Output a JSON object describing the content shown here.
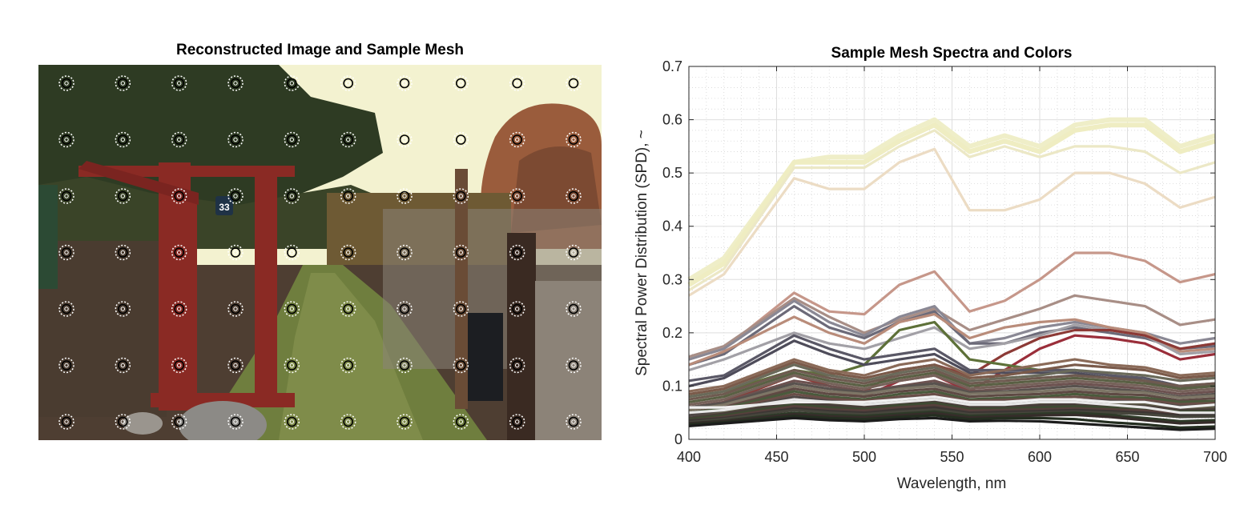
{
  "left_panel": {
    "title": "Reconstructed Image and Sample Mesh",
    "mesh": {
      "columns": 10,
      "rows": 7
    },
    "gate_number": "33",
    "colors": {
      "sky": "#f3f2d0",
      "foliage": "#2d3a22",
      "autumn_tree": "#9a5a3a",
      "gate": "#8a2a24",
      "grass": "#6f7e3e",
      "soil": "#4b3a30",
      "fence": "#6b5c50"
    }
  },
  "chart_data": {
    "type": "line",
    "title": "Sample Mesh Spectra and Colors",
    "xlabel": "Wavelength, nm",
    "ylabel": "Spectral Power Distribution (SPD), ~",
    "xlim": [
      400,
      700
    ],
    "ylim": [
      0,
      0.7
    ],
    "xticks": [
      400,
      450,
      500,
      550,
      600,
      650,
      700
    ],
    "yticks": [
      0,
      0.1,
      0.2,
      0.3,
      0.4,
      0.5,
      0.6,
      0.7
    ],
    "grid": true,
    "minor_grid": true,
    "x": [
      400,
      420,
      460,
      480,
      500,
      520,
      540,
      560,
      580,
      600,
      620,
      640,
      660,
      680,
      700
    ],
    "series": [
      {
        "color": "#efeec8",
        "values": [
          0.3,
          0.34,
          0.52,
          0.53,
          0.53,
          0.57,
          0.6,
          0.55,
          0.57,
          0.55,
          0.59,
          0.6,
          0.6,
          0.55,
          0.57
        ]
      },
      {
        "color": "#efedc2",
        "values": [
          0.29,
          0.33,
          0.52,
          0.52,
          0.52,
          0.56,
          0.59,
          0.54,
          0.56,
          0.54,
          0.58,
          0.59,
          0.59,
          0.54,
          0.56
        ]
      },
      {
        "color": "#ece8c6",
        "values": [
          0.28,
          0.32,
          0.51,
          0.51,
          0.51,
          0.55,
          0.58,
          0.53,
          0.55,
          0.53,
          0.55,
          0.55,
          0.54,
          0.5,
          0.52
        ]
      },
      {
        "color": "#ecdcc4",
        "values": [
          0.27,
          0.31,
          0.49,
          0.47,
          0.47,
          0.52,
          0.545,
          0.43,
          0.43,
          0.45,
          0.5,
          0.5,
          0.48,
          0.435,
          0.455
        ]
      },
      {
        "color": "#c6978a",
        "values": [
          0.15,
          0.17,
          0.275,
          0.24,
          0.235,
          0.29,
          0.315,
          0.24,
          0.26,
          0.3,
          0.35,
          0.35,
          0.335,
          0.295,
          0.31
        ]
      },
      {
        "color": "#a88e86",
        "values": [
          0.155,
          0.175,
          0.265,
          0.23,
          0.2,
          0.225,
          0.245,
          0.205,
          0.225,
          0.245,
          0.27,
          0.26,
          0.25,
          0.215,
          0.225
        ]
      },
      {
        "color": "#8a8894",
        "values": [
          0.15,
          0.17,
          0.26,
          0.22,
          0.195,
          0.23,
          0.25,
          0.18,
          0.19,
          0.21,
          0.22,
          0.21,
          0.2,
          0.18,
          0.19
        ]
      },
      {
        "color": "#6c6a78",
        "values": [
          0.14,
          0.16,
          0.25,
          0.21,
          0.19,
          0.22,
          0.24,
          0.18,
          0.18,
          0.2,
          0.21,
          0.2,
          0.19,
          0.17,
          0.175
        ]
      },
      {
        "color": "#b98c7a",
        "values": [
          0.14,
          0.165,
          0.23,
          0.2,
          0.18,
          0.22,
          0.235,
          0.19,
          0.21,
          0.22,
          0.225,
          0.21,
          0.2,
          0.165,
          0.17
        ]
      },
      {
        "color": "#a2a0a6",
        "values": [
          0.13,
          0.15,
          0.2,
          0.18,
          0.17,
          0.19,
          0.21,
          0.17,
          0.18,
          0.195,
          0.215,
          0.205,
          0.195,
          0.16,
          0.165
        ]
      },
      {
        "color": "#8c3a36",
        "values": [
          0.06,
          0.07,
          0.12,
          0.1,
          0.09,
          0.13,
          0.14,
          0.12,
          0.16,
          0.19,
          0.205,
          0.205,
          0.195,
          0.17,
          0.18
        ]
      },
      {
        "color": "#9a2e3a",
        "values": [
          0.05,
          0.06,
          0.1,
          0.09,
          0.08,
          0.11,
          0.12,
          0.09,
          0.13,
          0.17,
          0.195,
          0.19,
          0.18,
          0.15,
          0.16
        ]
      },
      {
        "color": "#5d7038",
        "values": [
          0.08,
          0.09,
          0.13,
          0.12,
          0.14,
          0.205,
          0.22,
          0.15,
          0.14,
          0.13,
          0.13,
          0.12,
          0.11,
          0.1,
          0.1
        ]
      },
      {
        "color": "#5a5866",
        "values": [
          0.11,
          0.12,
          0.195,
          0.17,
          0.15,
          0.16,
          0.17,
          0.13,
          0.13,
          0.13,
          0.13,
          0.12,
          0.115,
          0.1,
          0.105
        ]
      },
      {
        "color": "#4e4c5a",
        "values": [
          0.1,
          0.115,
          0.185,
          0.16,
          0.14,
          0.15,
          0.16,
          0.125,
          0.125,
          0.125,
          0.125,
          0.115,
          0.11,
          0.095,
          0.1
        ]
      },
      {
        "color": "#8a6a58",
        "values": [
          0.09,
          0.1,
          0.15,
          0.13,
          0.12,
          0.14,
          0.15,
          0.12,
          0.13,
          0.14,
          0.15,
          0.14,
          0.135,
          0.12,
          0.125
        ]
      },
      {
        "color": "#7a5a4a",
        "values": [
          0.085,
          0.095,
          0.145,
          0.125,
          0.115,
          0.13,
          0.14,
          0.115,
          0.12,
          0.13,
          0.14,
          0.135,
          0.13,
          0.115,
          0.12
        ]
      },
      {
        "color": "#6a6a5a",
        "values": [
          0.08,
          0.09,
          0.14,
          0.12,
          0.11,
          0.125,
          0.135,
          0.11,
          0.115,
          0.12,
          0.13,
          0.125,
          0.12,
          0.11,
          0.115
        ]
      },
      {
        "color": "#6e5a50",
        "values": [
          0.075,
          0.085,
          0.13,
          0.115,
          0.105,
          0.12,
          0.13,
          0.105,
          0.11,
          0.115,
          0.12,
          0.115,
          0.11,
          0.1,
          0.105
        ]
      },
      {
        "color": "#5a6044",
        "values": [
          0.07,
          0.08,
          0.125,
          0.11,
          0.1,
          0.115,
          0.125,
          0.1,
          0.105,
          0.11,
          0.115,
          0.11,
          0.105,
          0.095,
          0.1
        ]
      },
      {
        "color": "#76625a",
        "values": [
          0.065,
          0.075,
          0.12,
          0.105,
          0.095,
          0.11,
          0.12,
          0.095,
          0.1,
          0.105,
          0.11,
          0.105,
          0.1,
          0.09,
          0.095
        ]
      },
      {
        "color": "#6c5250",
        "values": [
          0.06,
          0.07,
          0.11,
          0.1,
          0.09,
          0.1,
          0.11,
          0.09,
          0.095,
          0.1,
          0.105,
          0.1,
          0.095,
          0.085,
          0.09
        ]
      },
      {
        "color": "#58524e",
        "values": [
          0.06,
          0.068,
          0.105,
          0.095,
          0.088,
          0.098,
          0.105,
          0.088,
          0.09,
          0.095,
          0.1,
          0.095,
          0.09,
          0.08,
          0.085
        ]
      },
      {
        "color": "#7d7666",
        "values": [
          0.055,
          0.065,
          0.1,
          0.09,
          0.085,
          0.095,
          0.1,
          0.085,
          0.088,
          0.09,
          0.095,
          0.09,
          0.088,
          0.078,
          0.082
        ]
      },
      {
        "color": "#5e4a44",
        "values": [
          0.05,
          0.06,
          0.095,
          0.085,
          0.08,
          0.09,
          0.095,
          0.08,
          0.083,
          0.085,
          0.09,
          0.085,
          0.083,
          0.073,
          0.077
        ]
      },
      {
        "color": "#4a5a3c",
        "values": [
          0.05,
          0.058,
          0.09,
          0.08,
          0.075,
          0.085,
          0.09,
          0.075,
          0.078,
          0.08,
          0.085,
          0.08,
          0.078,
          0.07,
          0.072
        ]
      },
      {
        "color": "#6a4e48",
        "values": [
          0.045,
          0.055,
          0.085,
          0.076,
          0.072,
          0.08,
          0.085,
          0.072,
          0.074,
          0.076,
          0.08,
          0.076,
          0.074,
          0.066,
          0.068
        ]
      },
      {
        "color": "#504846",
        "values": [
          0.045,
          0.052,
          0.08,
          0.072,
          0.068,
          0.076,
          0.08,
          0.068,
          0.07,
          0.072,
          0.075,
          0.072,
          0.07,
          0.062,
          0.064
        ]
      },
      {
        "color": "#5e5a48",
        "values": [
          0.04,
          0.05,
          0.075,
          0.068,
          0.064,
          0.072,
          0.076,
          0.064,
          0.066,
          0.068,
          0.07,
          0.068,
          0.066,
          0.058,
          0.06
        ]
      },
      {
        "color": "#483e3a",
        "values": [
          0.04,
          0.048,
          0.07,
          0.064,
          0.06,
          0.068,
          0.072,
          0.06,
          0.062,
          0.064,
          0.066,
          0.064,
          0.062,
          0.055,
          0.056
        ]
      },
      {
        "color": "#3e4a32",
        "values": [
          0.038,
          0.045,
          0.066,
          0.06,
          0.057,
          0.064,
          0.068,
          0.057,
          0.058,
          0.06,
          0.062,
          0.06,
          0.058,
          0.052,
          0.053
        ]
      },
      {
        "color": "#56403c",
        "values": [
          0.035,
          0.042,
          0.062,
          0.056,
          0.054,
          0.06,
          0.064,
          0.054,
          0.055,
          0.056,
          0.058,
          0.056,
          0.054,
          0.048,
          0.05
        ]
      },
      {
        "color": "#3c3634",
        "values": [
          0.035,
          0.04,
          0.058,
          0.053,
          0.05,
          0.056,
          0.06,
          0.05,
          0.052,
          0.053,
          0.055,
          0.053,
          0.05,
          0.045,
          0.046
        ]
      },
      {
        "color": "#46463c",
        "values": [
          0.032,
          0.038,
          0.055,
          0.05,
          0.047,
          0.052,
          0.056,
          0.047,
          0.048,
          0.05,
          0.052,
          0.05,
          0.047,
          0.042,
          0.043
        ]
      },
      {
        "color": "#2e3a28",
        "values": [
          0.03,
          0.035,
          0.05,
          0.046,
          0.044,
          0.048,
          0.052,
          0.044,
          0.046,
          0.048,
          0.05,
          0.046,
          0.04,
          0.034,
          0.036
        ]
      },
      {
        "color": "#362c2a",
        "values": [
          0.03,
          0.034,
          0.047,
          0.043,
          0.041,
          0.045,
          0.049,
          0.041,
          0.043,
          0.045,
          0.046,
          0.042,
          0.036,
          0.03,
          0.032
        ]
      },
      {
        "color": "#f0f0f0",
        "values": [
          0.06,
          0.06,
          0.07,
          0.07,
          0.07,
          0.075,
          0.08,
          0.07,
          0.07,
          0.075,
          0.075,
          0.07,
          0.07,
          0.06,
          0.065
        ]
      },
      {
        "color": "#e8e8e8",
        "values": [
          0.05,
          0.055,
          0.075,
          0.07,
          0.065,
          0.07,
          0.075,
          0.065,
          0.065,
          0.07,
          0.07,
          0.065,
          0.06,
          0.05,
          0.05
        ]
      },
      {
        "color": "#242e20",
        "values": [
          0.028,
          0.032,
          0.044,
          0.04,
          0.038,
          0.042,
          0.045,
          0.038,
          0.04,
          0.04,
          0.038,
          0.032,
          0.028,
          0.022,
          0.024
        ]
      },
      {
        "color": "#1c1c1c",
        "values": [
          0.025,
          0.03,
          0.04,
          0.036,
          0.034,
          0.038,
          0.04,
          0.034,
          0.035,
          0.034,
          0.03,
          0.026,
          0.022,
          0.018,
          0.02
        ]
      }
    ]
  }
}
